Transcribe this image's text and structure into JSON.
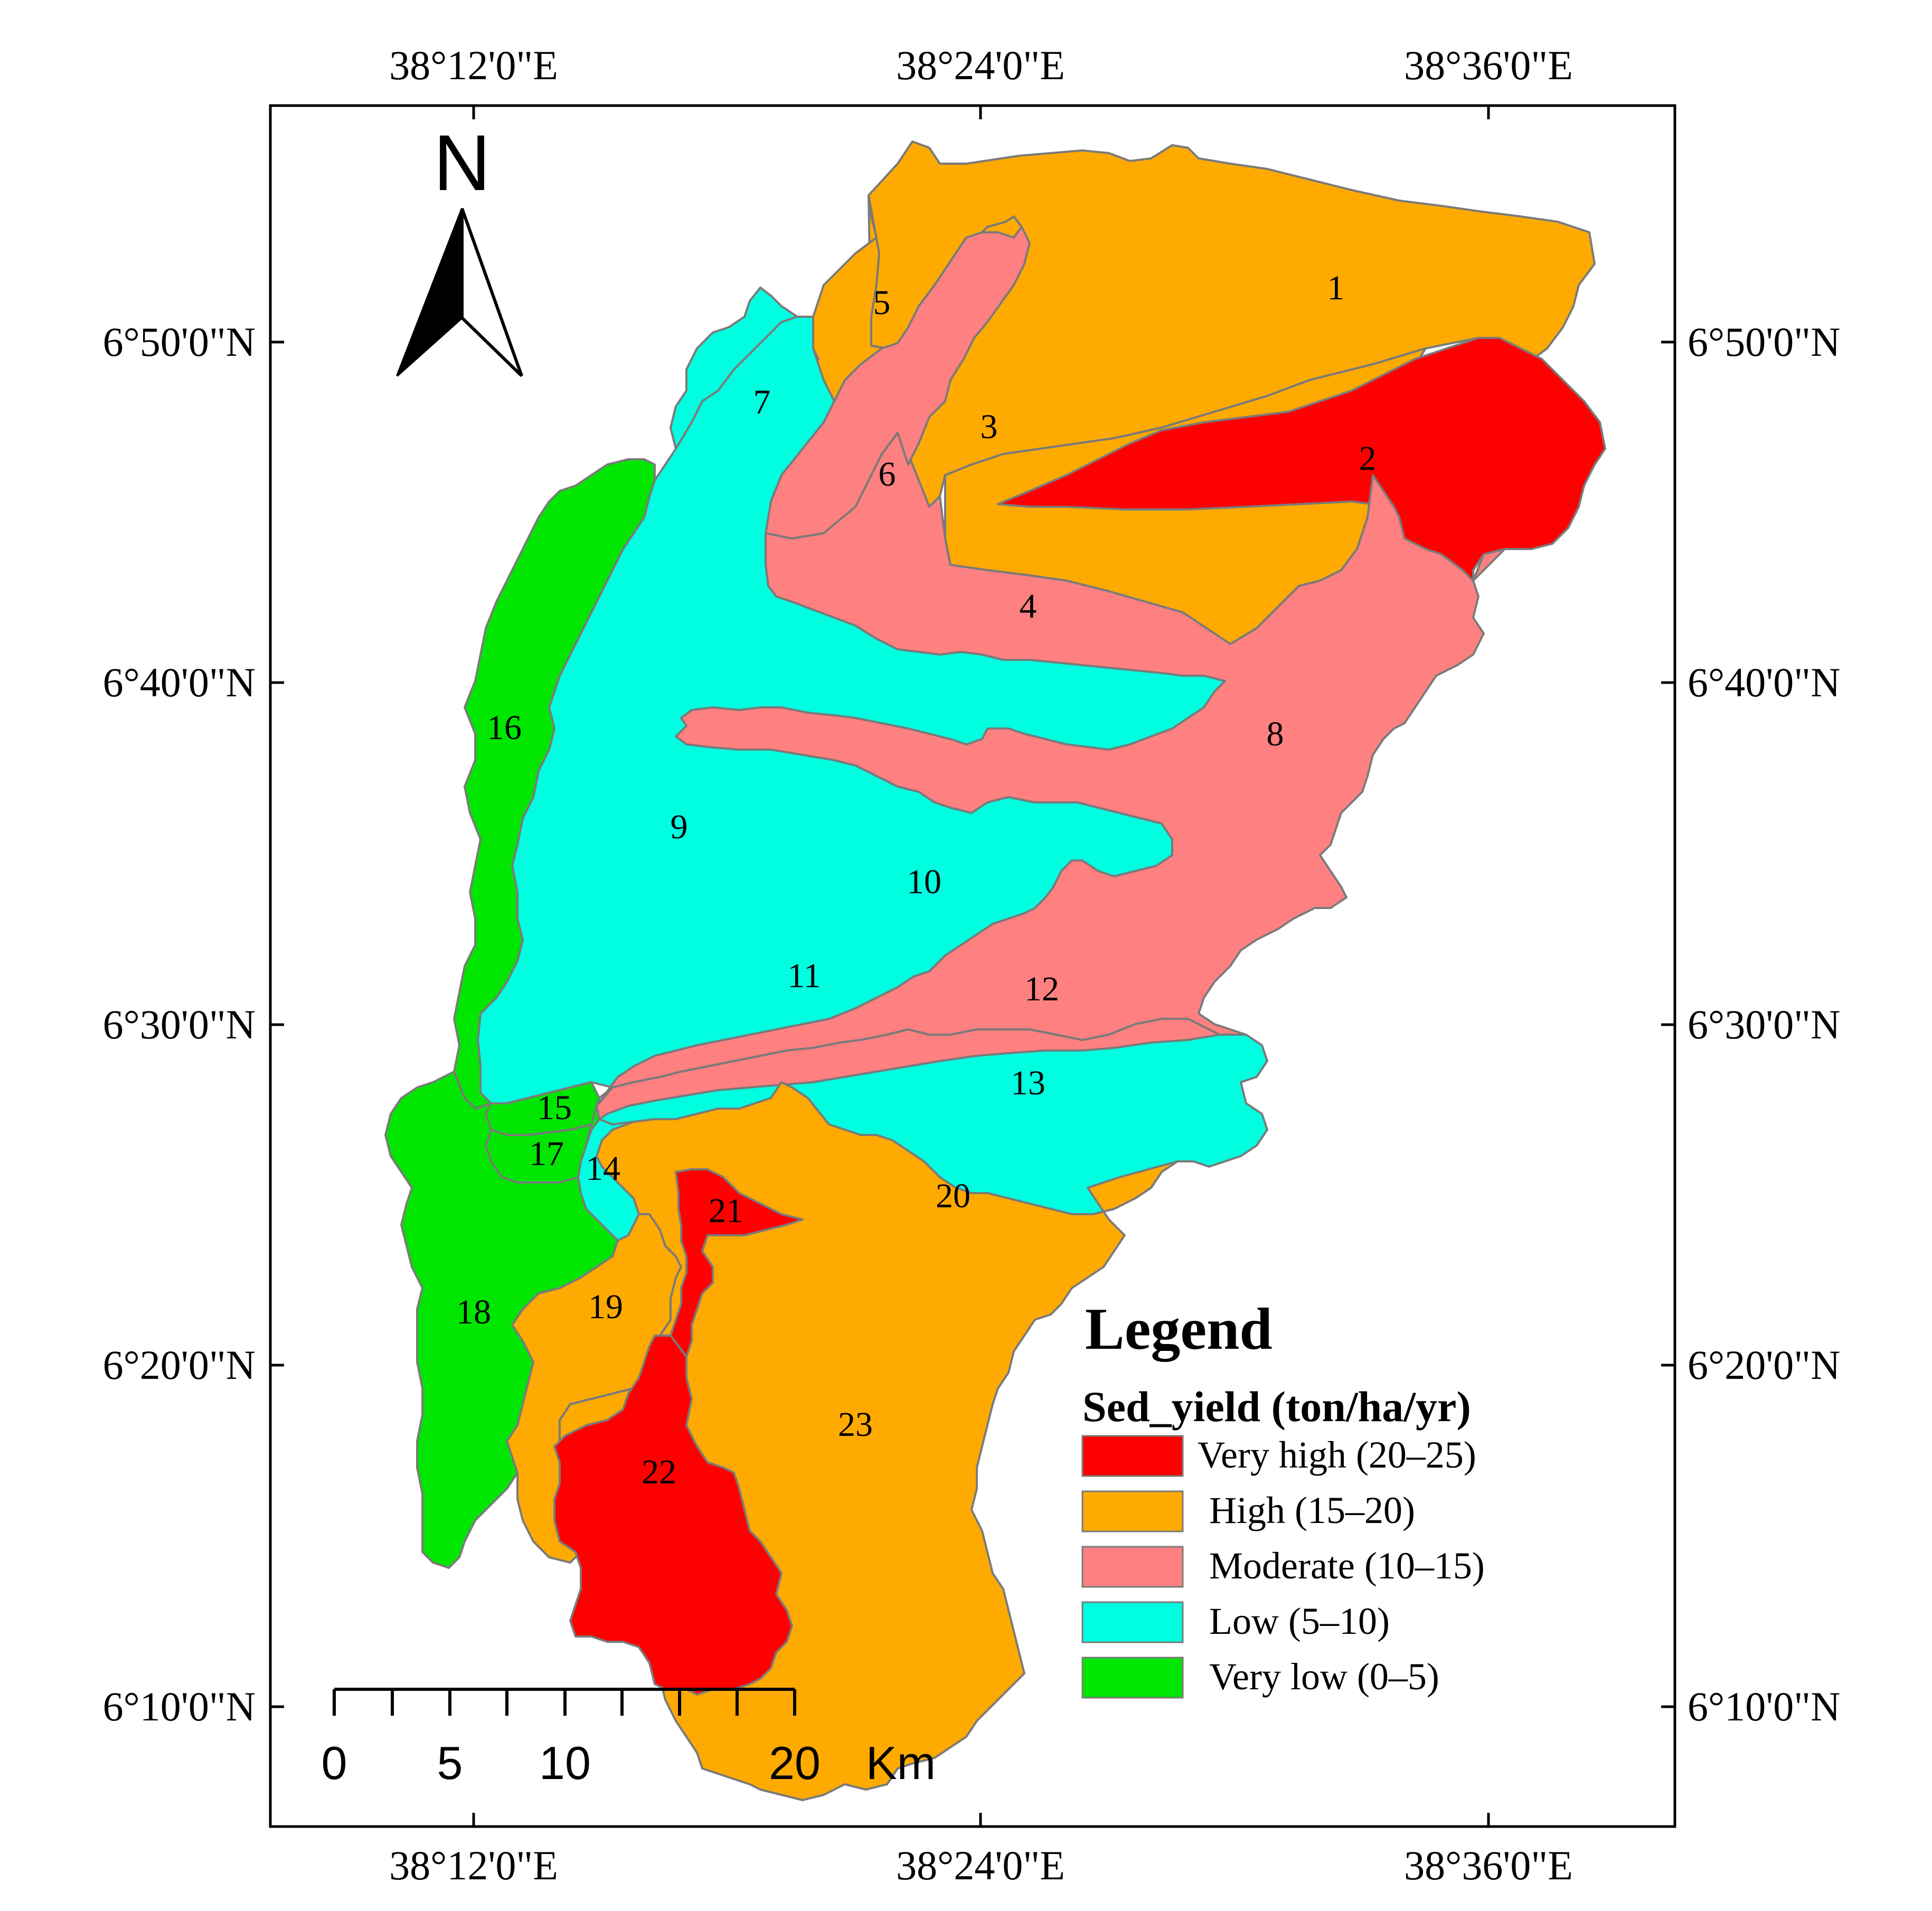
{
  "coordinates": {
    "top": [
      "38°12'0\"E",
      "38°24'0\"E",
      "38°36'0\"E"
    ],
    "bottom": [
      "38°12'0\"E",
      "38°24'0\"E",
      "38°36'0\"E"
    ],
    "left": [
      "6°50'0\"N",
      "6°40'0\"N",
      "6°30'0\"N",
      "6°20'0\"N",
      "6°10'0\"N"
    ],
    "right": [
      "6°50'0\"N",
      "6°40'0\"N",
      "6°30'0\"N",
      "6°20'0\"N",
      "6°10'0\"N"
    ]
  },
  "north_arrow": {
    "label": "N"
  },
  "legend": {
    "title": "Legend",
    "subtitle": "Sed_yield (ton/ha/yr)",
    "items": [
      {
        "label": "Very high (20–25)",
        "color": "#ff0000"
      },
      {
        "label": "High (15–20)",
        "color": "#ffaa00"
      },
      {
        "label": "Moderate (10–15)",
        "color": "#ff8080"
      },
      {
        "label": "Low (5–10)",
        "color": "#00ffe0"
      },
      {
        "label": "Very low (0–5)",
        "color": "#00e600"
      }
    ]
  },
  "scale_bar": {
    "labels": [
      "0",
      "5",
      "10",
      "20"
    ],
    "unit": "Km"
  },
  "subbasins": [
    {
      "id": "1",
      "class": "High (15–20)"
    },
    {
      "id": "2",
      "class": "Very high (20–25)"
    },
    {
      "id": "3",
      "class": "High (15–20)"
    },
    {
      "id": "4",
      "class": "Moderate (10–15)"
    },
    {
      "id": "5",
      "class": "High (15–20)"
    },
    {
      "id": "6",
      "class": "Moderate (10–15)"
    },
    {
      "id": "7",
      "class": "Low (5–10)"
    },
    {
      "id": "8",
      "class": "Moderate (10–15)"
    },
    {
      "id": "9",
      "class": "Low (5–10)"
    },
    {
      "id": "10",
      "class": "Low (5–10)"
    },
    {
      "id": "11",
      "class": "Low (5–10)"
    },
    {
      "id": "12",
      "class": "Moderate (10–15)"
    },
    {
      "id": "13",
      "class": "Low (5–10)"
    },
    {
      "id": "14",
      "class": "Low (5–10)"
    },
    {
      "id": "15",
      "class": "Very low (0–5)"
    },
    {
      "id": "16",
      "class": "Very low (0–5)"
    },
    {
      "id": "17",
      "class": "Very low (0–5)"
    },
    {
      "id": "18",
      "class": "Very low (0–5)"
    },
    {
      "id": "19",
      "class": "High (15–20)"
    },
    {
      "id": "20",
      "class": "High (15–20)"
    },
    {
      "id": "21",
      "class": "Very high (20–25)"
    },
    {
      "id": "22",
      "class": "Very high (20–25)"
    },
    {
      "id": "23",
      "class": "High (15–20)"
    }
  ]
}
